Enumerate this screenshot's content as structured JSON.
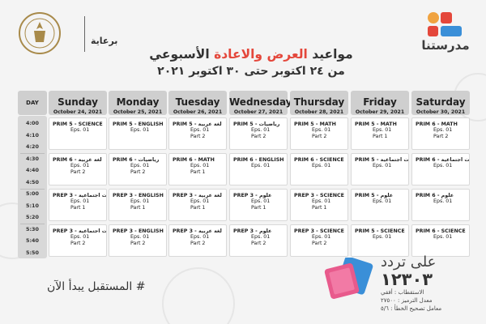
{
  "header": {
    "brand_name": "مدرستنا",
    "sponsor_label": "برعاية",
    "title_part1": "مواعيد",
    "title_highlight": "العرض والاعادة",
    "title_part2": "الأسبوعي",
    "subtitle": "من ٢٤ اكتوبر حتى ٣٠ اكتوبر ٢٠٢١",
    "colors": {
      "accent": "#e4473b",
      "logo_orange": "#f0a340",
      "logo_red": "#e4473b",
      "logo_blue": "#3a8fd8"
    }
  },
  "schedule": {
    "day_column_label": "DAY",
    "days": [
      {
        "name": "Sunday",
        "date": "October 24, 2021"
      },
      {
        "name": "Monday",
        "date": "October 25, 2021"
      },
      {
        "name": "Tuesday",
        "date": "October 26, 2021"
      },
      {
        "name": "Wednesday",
        "date": "October 27, 2021"
      },
      {
        "name": "Thursday",
        "date": "October 28, 2021"
      },
      {
        "name": "Friday",
        "date": "October 29, 2021"
      },
      {
        "name": "Saturday",
        "date": "October 30, 2021"
      }
    ],
    "times": [
      "4:00",
      "4:10",
      "4:20",
      "4:30",
      "4:40",
      "4:50",
      "5:00",
      "5:10",
      "5:20",
      "5:30",
      "5:40",
      "5:50"
    ],
    "rows": [
      [
        {
          "title": "PRIM 5 - SCIENCE",
          "eps": "Eps. 01",
          "part": ""
        },
        {
          "title": "PRIM 5 - ENGLISH",
          "eps": "Eps. 01",
          "part": ""
        },
        {
          "title": "PRIM 5 - لغة عربية",
          "eps": "Eps. 01",
          "part": "Part 2"
        },
        {
          "title": "PRIM 5 - رياضيات",
          "eps": "Eps. 01",
          "part": "Part 2"
        },
        {
          "title": "PRIM 5 - MATH",
          "eps": "Eps. 01",
          "part": "Part 2"
        },
        {
          "title": "PRIM 5 - MATH",
          "eps": "Eps. 01",
          "part": "Part 1"
        },
        {
          "title": "PRIM 6 - MATH",
          "eps": "Eps. 01",
          "part": "Part 2"
        }
      ],
      [
        {
          "title": "PRIM 6 - لغة عربية",
          "eps": "Eps. 01",
          "part": "Part 2"
        },
        {
          "title": "PRIM 6 - رياضيات",
          "eps": "Eps. 01",
          "part": "Part 2"
        },
        {
          "title": "PRIM 6 - MATH",
          "eps": "Eps. 01",
          "part": "Part 1"
        },
        {
          "title": "PRIM 6 - ENGLISH",
          "eps": "Eps. 01",
          "part": ""
        },
        {
          "title": "PRIM 6 - SCIENCE",
          "eps": "Eps. 01",
          "part": ""
        },
        {
          "title": "PRIM 5 - دراسات اجتماعية",
          "eps": "Eps. 01",
          "part": ""
        },
        {
          "title": "PRIM 6 - دراسات اجتماعية",
          "eps": "Eps. 01",
          "part": ""
        }
      ],
      [
        {
          "title": "PREP 3 - دراسات اجتماعية",
          "eps": "Eps. 01",
          "part": "Part 1"
        },
        {
          "title": "PREP 3 - ENGLISH",
          "eps": "Eps. 01",
          "part": "Part 1"
        },
        {
          "title": "PREP 3 - لغة عربية",
          "eps": "Eps. 01",
          "part": "Part 1"
        },
        {
          "title": "PREP 3 - علوم",
          "eps": "Eps. 01",
          "part": "Part 1"
        },
        {
          "title": "PREP 3 - SCIENCE",
          "eps": "Eps. 01",
          "part": "Part 1"
        },
        {
          "title": "PRIM 5 - علوم",
          "eps": "Eps. 01",
          "part": ""
        },
        {
          "title": "PRIM 6 - علوم",
          "eps": "Eps. 01",
          "part": ""
        }
      ],
      [
        {
          "title": "PREP 3 - دراسات اجتماعية",
          "eps": "Eps. 01",
          "part": "Part 2"
        },
        {
          "title": "PREP 3 - ENGLISH",
          "eps": "Eps. 01",
          "part": "Part 2"
        },
        {
          "title": "PREP 3 - لغة عربية",
          "eps": "Eps. 01",
          "part": "Part 2"
        },
        {
          "title": "PREP 3 - علوم",
          "eps": "Eps. 01",
          "part": "Part 2"
        },
        {
          "title": "PREP 3 - SCIENCE",
          "eps": "Eps. 01",
          "part": "Part 2"
        },
        {
          "title": "PRIM 5 - SCIENCE",
          "eps": "Eps. 01",
          "part": ""
        },
        {
          "title": "PRIM 6 - SCIENCE",
          "eps": "Eps. 01",
          "part": ""
        }
      ]
    ]
  },
  "footer": {
    "hashtag": "# المستقبل يبدأ الآن",
    "freq_on": "على تردد",
    "freq_number": "١٢٣٠٣",
    "line1": "الاستقطاب : أفقي",
    "line2": "معدل الترميز : ٢٧٥٠٠",
    "line3": "معامل تصحيح الخطأ : ٥/٦"
  }
}
